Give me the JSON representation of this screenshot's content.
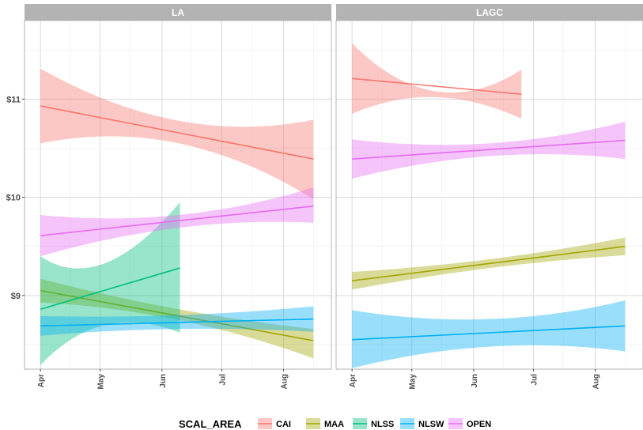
{
  "chart_data": {
    "type": "line",
    "facets": [
      "LA",
      "LAGC"
    ],
    "x_ticks": [
      "Apr",
      "May",
      "Jun",
      "Jul",
      "Aug"
    ],
    "y_ticks": [
      "$9",
      "$10",
      "$11"
    ],
    "ylim": [
      8.25,
      11.8
    ],
    "grid": true,
    "legend": {
      "title": "SCAL_AREA",
      "position": "bottom",
      "entries": [
        "CAI",
        "MAA",
        "NLSS",
        "NLSW",
        "OPEN"
      ]
    },
    "colors": {
      "CAI": "#F8766D",
      "MAA": "#A3A500",
      "NLSS": "#00BF7D",
      "NLSW": "#00B0F6",
      "OPEN": "#E76BF3"
    },
    "panels": [
      {
        "facet": "LA",
        "series": [
          {
            "name": "CAI",
            "x": [
              "2000-04-01",
              "2000-08-16"
            ],
            "y": [
              10.93,
              10.39
            ],
            "band": {
              "x": [
                "2000-04-01",
                "2000-06-10",
                "2000-08-16"
              ],
              "lower": [
                10.55,
                10.55,
                9.98
              ],
              "upper": [
                11.31,
                10.78,
                10.79
              ]
            }
          },
          {
            "name": "MAA",
            "x": [
              "2000-04-01",
              "2000-08-16"
            ],
            "y": [
              9.05,
              8.54
            ],
            "band": {
              "x": [
                "2000-04-01",
                "2000-06-10",
                "2000-08-16"
              ],
              "lower": [
                8.93,
                8.75,
                8.36
              ],
              "upper": [
                9.17,
                8.86,
                8.66
              ]
            }
          },
          {
            "name": "NLSS",
            "x": [
              "2000-04-01",
              "2000-06-10"
            ],
            "y": [
              8.86,
              9.28
            ],
            "band": {
              "x": [
                "2000-04-01",
                "2000-05-01",
                "2000-06-10"
              ],
              "lower": [
                8.29,
                8.7,
                8.62
              ],
              "upper": [
                9.4,
                9.33,
                9.95
              ]
            }
          },
          {
            "name": "NLSW",
            "x": [
              "2000-04-01",
              "2000-08-16"
            ],
            "y": [
              8.69,
              8.76
            ],
            "band": {
              "x": [
                "2000-04-01",
                "2000-06-10",
                "2000-08-16"
              ],
              "lower": [
                8.59,
                8.66,
                8.63
              ],
              "upper": [
                8.79,
                8.8,
                8.89
              ]
            }
          },
          {
            "name": "OPEN",
            "x": [
              "2000-04-01",
              "2000-08-16"
            ],
            "y": [
              9.61,
              9.91
            ],
            "band": {
              "x": [
                "2000-04-01",
                "2000-06-10",
                "2000-08-16"
              ],
              "lower": [
                9.4,
                9.69,
                9.74
              ],
              "upper": [
                9.82,
                9.82,
                10.1
              ]
            }
          }
        ]
      },
      {
        "facet": "LAGC",
        "series": [
          {
            "name": "CAI",
            "x": [
              "2000-04-01",
              "2000-06-25"
            ],
            "y": [
              11.21,
              11.05
            ],
            "band": {
              "x": [
                "2000-04-01",
                "2000-05-12",
                "2000-06-25"
              ],
              "lower": [
                10.85,
                11.02,
                10.8
              ],
              "upper": [
                11.57,
                11.08,
                11.3
              ]
            }
          },
          {
            "name": "MAA",
            "x": [
              "2000-04-01",
              "2000-08-16"
            ],
            "y": [
              9.15,
              9.5
            ],
            "band": {
              "x": [
                "2000-04-01",
                "2000-06-10",
                "2000-08-16"
              ],
              "lower": [
                9.06,
                9.28,
                9.41
              ],
              "upper": [
                9.24,
                9.37,
                9.59
              ]
            }
          },
          {
            "name": "NLSW",
            "x": [
              "2000-04-01",
              "2000-08-16"
            ],
            "y": [
              8.55,
              8.69
            ],
            "band": {
              "x": [
                "2000-04-01",
                "2000-06-10",
                "2000-08-16"
              ],
              "lower": [
                8.26,
                8.48,
                8.43
              ],
              "upper": [
                8.85,
                8.76,
                8.95
              ]
            }
          },
          {
            "name": "OPEN",
            "x": [
              "2000-04-01",
              "2000-08-16"
            ],
            "y": [
              10.39,
              10.58
            ],
            "band": {
              "x": [
                "2000-04-01",
                "2000-06-10",
                "2000-08-16"
              ],
              "lower": [
                10.19,
                10.42,
                10.39
              ],
              "upper": [
                10.59,
                10.55,
                10.77
              ]
            }
          }
        ]
      }
    ]
  }
}
